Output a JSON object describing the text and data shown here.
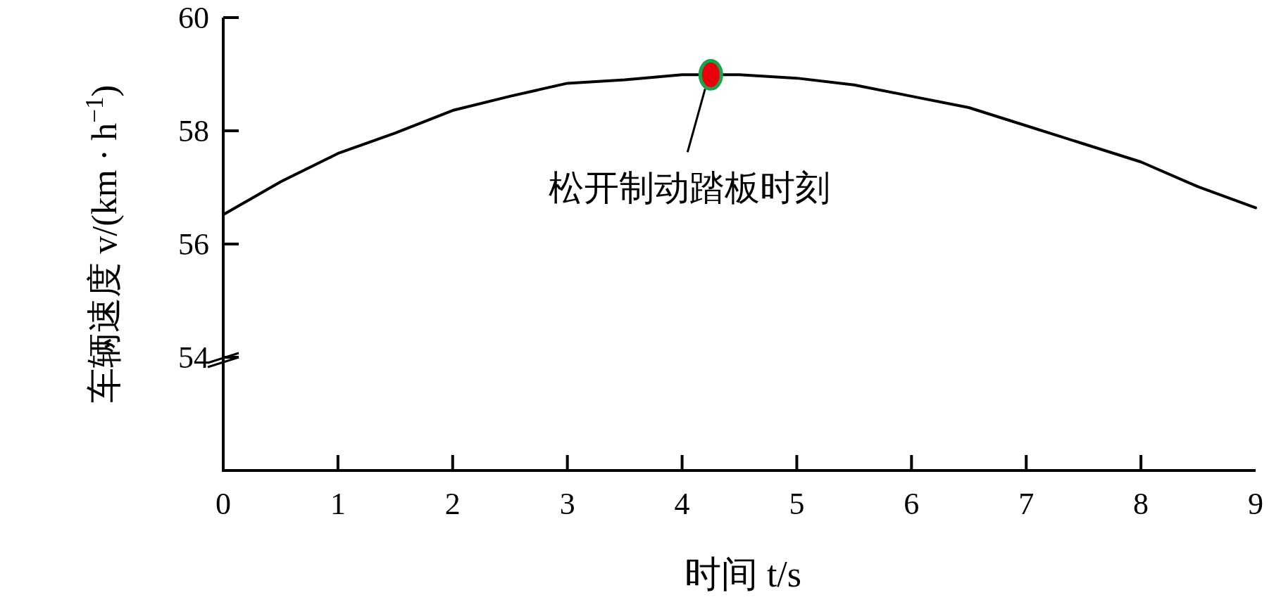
{
  "chart_data": {
    "type": "line",
    "xlabel": "时间 t/s",
    "ylabel": "车辆速度 v/(km · h$^{−1}$)",
    "xlim": [
      0,
      9
    ],
    "xticks": [
      0,
      1,
      2,
      3,
      4,
      5,
      6,
      7,
      8,
      9
    ],
    "ylim": [
      52,
      60
    ],
    "yticks": [
      54,
      56,
      58,
      60
    ],
    "grid": false,
    "marker": "none",
    "line_style": "solid",
    "series": [
      {
        "color": "#000000",
        "x": [
          0,
          0.5,
          1,
          1.5,
          2,
          2.5,
          3,
          3.5,
          4,
          4.25,
          4.5,
          5,
          5.5,
          6,
          6.5,
          7,
          7.5,
          8,
          8.5,
          9
        ],
        "values": [
          56.52,
          57.1,
          57.6,
          57.96,
          58.36,
          58.61,
          58.84,
          58.9,
          58.99,
          58.99,
          58.99,
          58.93,
          58.81,
          58.61,
          58.41,
          58.09,
          57.77,
          57.45,
          57.01,
          56.64
        ]
      }
    ],
    "annotations": [
      {
        "text": "松开制动踏板时刻",
        "x": 4.25,
        "y": 58.99
      }
    ]
  }
}
